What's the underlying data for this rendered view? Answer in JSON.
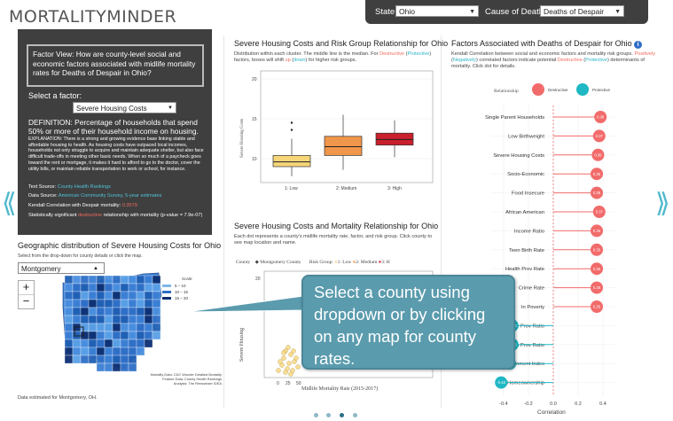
{
  "app": {
    "logo": "MORTALITYMINDER"
  },
  "filters": {
    "state_label": "State:",
    "state_value": "Ohio",
    "cause_label": "Cause of Death:",
    "cause_value": "Deaths of Despair"
  },
  "nav": {
    "prev_arrow": "⟪",
    "next_arrow": "⟫"
  },
  "factor_panel": {
    "question": "Factor View: How are county-level social and economic factors associated with midlife mortality rates for Deaths of Despair in Ohio?",
    "select_label": "Select a factor:",
    "selected_factor": "Severe Housing Costs",
    "definition": "DEFINITION: Percentage of households that spend 50% or more of their household income on housing.",
    "explanation": "EXPLANATION: There is a strong and growing evidence base linking stable and affordable housing to health. As housing costs have outpaced local incomes, households not only struggle to acquire and maintain adequate shelter, but also face difficult trade-offs in meeting other basic needs. When so much of a paycheck goes toward the rent or mortgage, it makes it hard to afford to go to the doctor, cover the utility bills, or maintain reliable transportation to work or school, for instance.",
    "text_source_label": "Text Source: ",
    "text_source_link": "County Health Rankings",
    "data_source_label": "Data Source: ",
    "data_source_link": "American Community Survey, 5-year estimates",
    "kendall_label": "Kendall Correlation with Despair mortality: ",
    "kendall_value": "0.3579",
    "significance_prefix": "Statistically significant ",
    "significance_word": "destructive",
    "significance_suffix": " relationship with mortality (p-value = 7.9e-07)"
  },
  "map_section": {
    "title": "Geographic distribution of Severe Housing Costs for Ohio",
    "subtitle": "Select from the drop-down for county details or click the map.",
    "county_select": "Montgomery",
    "zoom_in": "+",
    "zoom_out": "−",
    "legend_title": "Scale:",
    "legend": [
      {
        "label": "5 – 10",
        "color": "#7fb7e8"
      },
      {
        "label": "10 – 15",
        "color": "#2f6fc7"
      },
      {
        "label": "15 – 20",
        "color": "#0c2f73"
      }
    ],
    "source_note": "Mortality Data: CDC Wonder Detailed Mortality\nFeature Data: County Health Rankings\nAnalysis: The Rensselaer IDEA",
    "footer": "Data estimated for Montgomery, OH."
  },
  "boxplot": {
    "title": "Severe Housing Costs and Risk Group Relationship for Ohio",
    "desc_a": "Distribution within each cluster. The middle line is the median. For ",
    "desc_destructive": "Destructive",
    "desc_b": " (",
    "desc_protective": "Protective",
    "desc_c": ") factors, boxes will shift ",
    "desc_up": "up",
    "desc_d": " (",
    "desc_down": "down",
    "desc_e": ") for higher risk groups.",
    "ylabel": "Severe Housing Costs",
    "yticks": [
      "20",
      "15",
      "10"
    ],
    "xlabels": [
      "1: Low",
      "2: Medium",
      "3: High"
    ]
  },
  "scatter": {
    "title": "Severe Housing Costs and Mortality Relationship for Ohio",
    "desc": "Each dot represents a county's midlife mortality rate, factor, and risk group. Click county to see map location and name.",
    "legend_county_label": "County",
    "legend_county_value": "Montgomery County",
    "legend_risk_label": "Risk Group:",
    "legend_risk": [
      "1: Low",
      "2: Medium",
      "3: H"
    ],
    "ylabel": "Severe Housing",
    "ytick": "20",
    "xticks": [
      "0",
      "25",
      "50"
    ],
    "xlabel": "Midlife Mortality Rate (2015-2017)"
  },
  "correlation": {
    "title": "Factors Associated with Deaths of Despair for Ohio",
    "info_icon": "i",
    "desc_a": "Kendall Correlation between social and economic factors and mortality risk groups. ",
    "desc_positively": "Positively",
    "desc_b": " (",
    "desc_negatively": "Negatively",
    "desc_c": ") correlated factors indicate potential ",
    "desc_destructive": "Destructive",
    "desc_d": " (",
    "desc_protective": "Protective",
    "desc_e": ") determinants of mortality. Click dot for details.",
    "legend_relationship": "Relationship",
    "legend_destructive": "Destructive",
    "legend_protective": "Protective",
    "xlabel": "Correlation",
    "xticks": [
      "-0.4",
      "-0.2",
      "0.0",
      "0.2",
      "0.4"
    ]
  },
  "callout": {
    "text": "Select a county using dropdown or by clicking on any map for county rates."
  },
  "chart_data": [
    {
      "type": "bar",
      "title": "Factors Associated with Deaths of Despair for Ohio",
      "xlabel": "Correlation",
      "xlim": [
        -0.5,
        0.5
      ],
      "categories": [
        "Single Parent Households",
        "Low Birthweight",
        "Severe Housing Costs",
        "Socio-Economic",
        "Food Insecure",
        "African American",
        "Income Ratio",
        "Teen Birth Rate",
        "Health Prov Rate",
        "Crime Rate",
        "In Poverty",
        "Other Prim Care Prov Ratio",
        "Mental Health Prov Ratio",
        "Food Environment Index",
        "Homeownership"
      ],
      "values": [
        0.38,
        0.37,
        0.36,
        0.35,
        0.35,
        0.37,
        0.35,
        0.35,
        0.35,
        0.35,
        0.35,
        -0.33,
        -0.33,
        -0.35,
        -0.42
      ],
      "value_labels": [
        "0.38",
        "0.37",
        "0.36",
        "0.35",
        "0.35",
        "0.37",
        "0.35",
        "0.35",
        "0.35",
        "0.35",
        "0.35",
        "-0.33",
        "-0.33",
        "-0.35",
        "-0.42"
      ],
      "colors": {
        "destructive": "#f26b6b",
        "protective": "#20b8c4"
      }
    },
    {
      "type": "box",
      "title": "Severe Housing Costs and Risk Group Relationship for Ohio",
      "ylabel": "Severe Housing Costs",
      "ylim": [
        7,
        21
      ],
      "categories": [
        "1: Low",
        "2: Medium",
        "3: High"
      ],
      "boxes": [
        {
          "min": 7.8,
          "q1": 9.0,
          "median": 9.6,
          "q3": 10.4,
          "max": 12.5,
          "outliers": [
            13.6,
            14.5
          ],
          "color": "#f7d679"
        },
        {
          "min": 8.6,
          "q1": 10.4,
          "median": 11.5,
          "q3": 12.8,
          "max": 15.5,
          "outliers": [],
          "color": "#f0964b"
        },
        {
          "min": 10.2,
          "q1": 11.7,
          "median": 12.4,
          "q3": 13.2,
          "max": 14.8,
          "outliers": [],
          "color": "#c9202c"
        }
      ]
    }
  ]
}
